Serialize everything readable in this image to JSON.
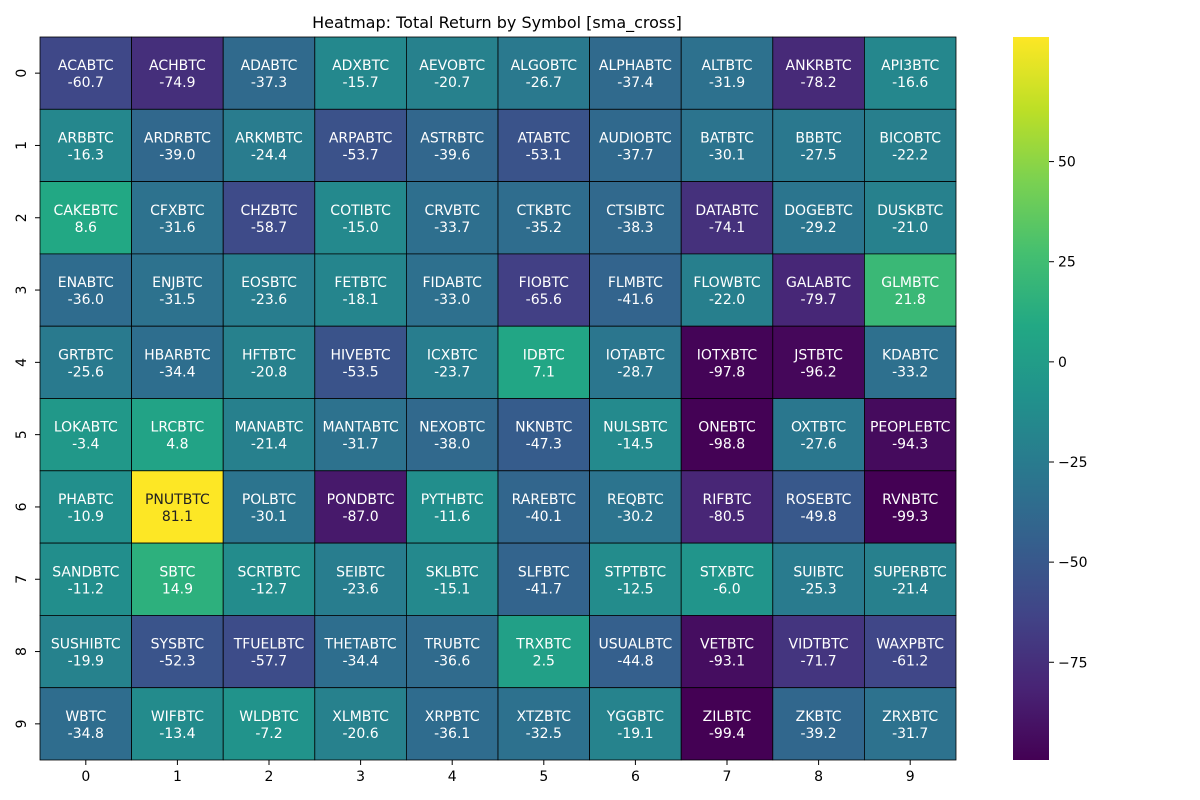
{
  "chart_data": {
    "type": "heatmap",
    "title": "Heatmap: Total Return by Symbol [sma_cross]",
    "x_ticks": [
      "0",
      "1",
      "2",
      "3",
      "4",
      "5",
      "6",
      "7",
      "8",
      "9"
    ],
    "y_ticks": [
      "0",
      "1",
      "2",
      "3",
      "4",
      "5",
      "6",
      "7",
      "8",
      "9"
    ],
    "colormap": "viridis",
    "vmin": -99.4,
    "vmax": 81.1,
    "colorbar_ticks": [
      50,
      25,
      0,
      -25,
      -50,
      -75
    ],
    "grid": true,
    "rows": [
      [
        {
          "symbol": "ACABTC",
          "value": -60.7
        },
        {
          "symbol": "ACHBTC",
          "value": -74.9
        },
        {
          "symbol": "ADABTC",
          "value": -37.3
        },
        {
          "symbol": "ADXBTC",
          "value": -15.7
        },
        {
          "symbol": "AEVOBTC",
          "value": -20.7
        },
        {
          "symbol": "ALGOBTC",
          "value": -26.7
        },
        {
          "symbol": "ALPHABTC",
          "value": -37.4
        },
        {
          "symbol": "ALTBTC",
          "value": -31.9
        },
        {
          "symbol": "ANKRBTC",
          "value": -78.2
        },
        {
          "symbol": "API3BTC",
          "value": -16.6
        }
      ],
      [
        {
          "symbol": "ARBBTC",
          "value": -16.3
        },
        {
          "symbol": "ARDRBTC",
          "value": -39.0
        },
        {
          "symbol": "ARKMBTC",
          "value": -24.4
        },
        {
          "symbol": "ARPABTC",
          "value": -53.7
        },
        {
          "symbol": "ASTRBTC",
          "value": -39.6
        },
        {
          "symbol": "ATABTC",
          "value": -53.1
        },
        {
          "symbol": "AUDIOBTC",
          "value": -37.7
        },
        {
          "symbol": "BATBTC",
          "value": -30.1
        },
        {
          "symbol": "BBBTC",
          "value": -27.5
        },
        {
          "symbol": "BICOBTC",
          "value": -22.2
        }
      ],
      [
        {
          "symbol": "CAKEBTC",
          "value": 8.6
        },
        {
          "symbol": "CFXBTC",
          "value": -31.6
        },
        {
          "symbol": "CHZBTC",
          "value": -58.7
        },
        {
          "symbol": "COTIBTC",
          "value": -15.0
        },
        {
          "symbol": "CRVBTC",
          "value": -33.7
        },
        {
          "symbol": "CTKBTC",
          "value": -35.2
        },
        {
          "symbol": "CTSIBTC",
          "value": -38.3
        },
        {
          "symbol": "DATABTC",
          "value": -74.1
        },
        {
          "symbol": "DOGEBTC",
          "value": -29.2
        },
        {
          "symbol": "DUSKBTC",
          "value": -21.0
        }
      ],
      [
        {
          "symbol": "ENABTC",
          "value": -36.0
        },
        {
          "symbol": "ENJBTC",
          "value": -31.5
        },
        {
          "symbol": "EOSBTC",
          "value": -23.6
        },
        {
          "symbol": "FETBTC",
          "value": -18.1
        },
        {
          "symbol": "FIDABTC",
          "value": -33.0
        },
        {
          "symbol": "FIOBTC",
          "value": -65.6
        },
        {
          "symbol": "FLMBTC",
          "value": -41.6
        },
        {
          "symbol": "FLOWBTC",
          "value": -22.0
        },
        {
          "symbol": "GALABTC",
          "value": -79.7
        },
        {
          "symbol": "GLMBTC",
          "value": 21.8
        }
      ],
      [
        {
          "symbol": "GRTBTC",
          "value": -25.6
        },
        {
          "symbol": "HBARBTC",
          "value": -34.4
        },
        {
          "symbol": "HFTBTC",
          "value": -20.8
        },
        {
          "symbol": "HIVEBTC",
          "value": -53.5
        },
        {
          "symbol": "ICXBTC",
          "value": -23.7
        },
        {
          "symbol": "IDBTC",
          "value": 7.1
        },
        {
          "symbol": "IOTABTC",
          "value": -28.7
        },
        {
          "symbol": "IOTXBTC",
          "value": -97.8
        },
        {
          "symbol": "JSTBTC",
          "value": -96.2
        },
        {
          "symbol": "KDABTC",
          "value": -33.2
        }
      ],
      [
        {
          "symbol": "LOKABTC",
          "value": -3.4
        },
        {
          "symbol": "LRCBTC",
          "value": 4.8
        },
        {
          "symbol": "MANABTC",
          "value": -21.4
        },
        {
          "symbol": "MANTABTC",
          "value": -31.7
        },
        {
          "symbol": "NEXOBTC",
          "value": -38.0
        },
        {
          "symbol": "NKNBTC",
          "value": -47.3
        },
        {
          "symbol": "NULSBTC",
          "value": -14.5
        },
        {
          "symbol": "ONEBTC",
          "value": -98.8
        },
        {
          "symbol": "OXTBTC",
          "value": -27.6
        },
        {
          "symbol": "PEOPLEBTC",
          "value": -94.3
        }
      ],
      [
        {
          "symbol": "PHABTC",
          "value": -10.9
        },
        {
          "symbol": "PNUTBTC",
          "value": 81.1
        },
        {
          "symbol": "POLBTC",
          "value": -30.1
        },
        {
          "symbol": "PONDBTC",
          "value": -87.0
        },
        {
          "symbol": "PYTHBTC",
          "value": -11.6
        },
        {
          "symbol": "RAREBTC",
          "value": -40.1
        },
        {
          "symbol": "REQBTC",
          "value": -30.2
        },
        {
          "symbol": "RIFBTC",
          "value": -80.5
        },
        {
          "symbol": "ROSEBTC",
          "value": -49.8
        },
        {
          "symbol": "RVNBTC",
          "value": -99.3
        }
      ],
      [
        {
          "symbol": "SANDBTC",
          "value": -11.2
        },
        {
          "symbol": "SBTC",
          "value": 14.9
        },
        {
          "symbol": "SCRTBTC",
          "value": -12.7
        },
        {
          "symbol": "SEIBTC",
          "value": -23.6
        },
        {
          "symbol": "SKLBTC",
          "value": -15.1
        },
        {
          "symbol": "SLFBTC",
          "value": -41.7
        },
        {
          "symbol": "STPTBTC",
          "value": -12.5
        },
        {
          "symbol": "STXBTC",
          "value": -6.0
        },
        {
          "symbol": "SUIBTC",
          "value": -25.3
        },
        {
          "symbol": "SUPERBTC",
          "value": -21.4
        }
      ],
      [
        {
          "symbol": "SUSHIBTC",
          "value": -19.9
        },
        {
          "symbol": "SYSBTC",
          "value": -52.3
        },
        {
          "symbol": "TFUELBTC",
          "value": -57.7
        },
        {
          "symbol": "THETABTC",
          "value": -34.4
        },
        {
          "symbol": "TRUBTC",
          "value": -36.6
        },
        {
          "symbol": "TRXBTC",
          "value": 2.5
        },
        {
          "symbol": "USUALBTC",
          "value": -44.8
        },
        {
          "symbol": "VETBTC",
          "value": -93.1
        },
        {
          "symbol": "VIDTBTC",
          "value": -71.7
        },
        {
          "symbol": "WAXPBTC",
          "value": -61.2
        }
      ],
      [
        {
          "symbol": "WBTC",
          "value": -34.8
        },
        {
          "symbol": "WIFBTC",
          "value": -13.4
        },
        {
          "symbol": "WLDBTC",
          "value": -7.2
        },
        {
          "symbol": "XLMBTC",
          "value": -20.6
        },
        {
          "symbol": "XRPBTC",
          "value": -36.1
        },
        {
          "symbol": "XTZBTC",
          "value": -32.5
        },
        {
          "symbol": "YGGBTC",
          "value": -19.1
        },
        {
          "symbol": "ZILBTC",
          "value": -99.4
        },
        {
          "symbol": "ZKBTC",
          "value": -39.2
        },
        {
          "symbol": "ZRXBTC",
          "value": -31.7
        }
      ]
    ]
  }
}
